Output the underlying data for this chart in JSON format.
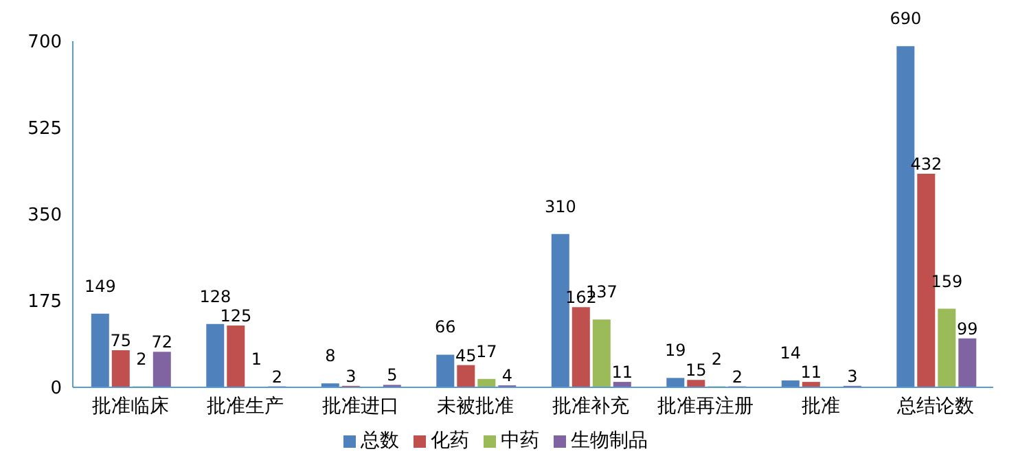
{
  "chart_data": {
    "type": "bar",
    "categories": [
      "批准临床",
      "批准生产",
      "批准进口",
      "未被批准",
      "批准补充",
      "批准再注册",
      "批准",
      "总结论数"
    ],
    "series": [
      {
        "name": "总数",
        "color": "#4f81bd",
        "values": [
          149,
          128,
          8,
          66,
          310,
          19,
          14,
          690
        ]
      },
      {
        "name": "化药",
        "color": "#c0504d",
        "values": [
          75,
          125,
          3,
          45,
          162,
          15,
          11,
          432
        ]
      },
      {
        "name": "中药",
        "color": "#9bbb59",
        "values": [
          2,
          1,
          null,
          17,
          137,
          2,
          null,
          159
        ]
      },
      {
        "name": "生物制品",
        "color": "#8064a2",
        "values": [
          72,
          2,
          5,
          4,
          11,
          2,
          3,
          99
        ]
      }
    ],
    "ylim": [
      0,
      700
    ],
    "yticks": [
      0,
      175,
      350,
      525,
      700
    ],
    "grid": false,
    "legend": "bottom",
    "data_labels": true
  }
}
